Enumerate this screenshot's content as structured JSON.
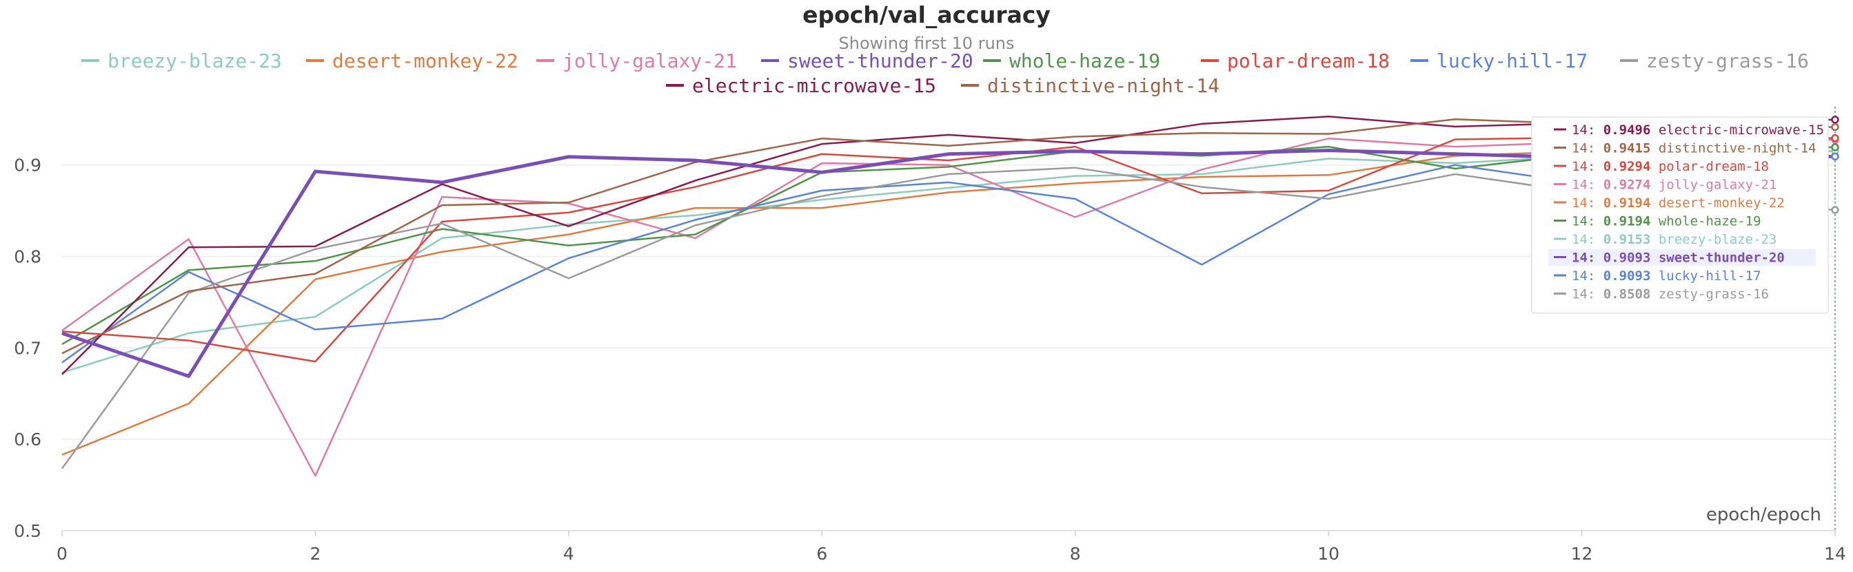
{
  "colors": {
    "breezy-blaze-23": "#8dcbbb",
    "desert-monkey-22": "#e07b3f",
    "jolly-galaxy-21": "#e07aa5",
    "sweet-thunder-20": "#7a4fb5",
    "whole-haze-19": "#4f944a",
    "polar-dream-18": "#d9473f",
    "lucky-hill-17": "#5a83d6",
    "zesty-grass-16": "#9b9b9b",
    "electric-microwave-15": "#8b1a4f",
    "distinctive-night-14": "#a0644a"
  },
  "chart_data": {
    "type": "line",
    "title": "epoch/val_accuracy",
    "subtitle": "Showing first 10 runs",
    "xlabel": "epoch/epoch",
    "ylabel": "",
    "xlim": [
      0,
      14
    ],
    "ylim": [
      0.5,
      0.96
    ],
    "xticks": [
      "0",
      "2",
      "4",
      "6",
      "8",
      "10",
      "12",
      "14"
    ],
    "yticks": [
      "0.5",
      "0.6",
      "0.7",
      "0.8",
      "0.9"
    ],
    "grid": true,
    "legend_position": "top",
    "legend_order": [
      "breezy-blaze-23",
      "desert-monkey-22",
      "jolly-galaxy-21",
      "sweet-thunder-20",
      "whole-haze-19",
      "polar-dream-18",
      "lucky-hill-17",
      "zesty-grass-16",
      "electric-microwave-15",
      "distinctive-night-14"
    ],
    "x": [
      0,
      1,
      2,
      3,
      4,
      5,
      6,
      7,
      8,
      9,
      10,
      11,
      12,
      13,
      14
    ],
    "series": [
      {
        "name": "breezy-blaze-23",
        "values": [
          0.673,
          0.716,
          0.734,
          0.82,
          0.835,
          0.845,
          0.862,
          0.875,
          0.888,
          0.89,
          0.907,
          0.902,
          0.91,
          0.912,
          0.9153
        ]
      },
      {
        "name": "desert-monkey-22",
        "values": [
          0.583,
          0.639,
          0.775,
          0.805,
          0.824,
          0.853,
          0.853,
          0.87,
          0.88,
          0.887,
          0.889,
          0.91,
          0.915,
          0.917,
          0.9194
        ]
      },
      {
        "name": "jolly-galaxy-21",
        "values": [
          0.719,
          0.819,
          0.56,
          0.865,
          0.858,
          0.82,
          0.902,
          0.9,
          0.843,
          0.895,
          0.929,
          0.92,
          0.925,
          0.927,
          0.9274
        ]
      },
      {
        "name": "sweet-thunder-20",
        "values": [
          0.716,
          0.669,
          0.893,
          0.881,
          0.909,
          0.905,
          0.892,
          0.912,
          0.915,
          0.912,
          0.916,
          0.912,
          0.908,
          0.909,
          0.9093
        ]
      },
      {
        "name": "whole-haze-19",
        "values": [
          0.704,
          0.785,
          0.795,
          0.83,
          0.812,
          0.824,
          0.892,
          0.898,
          0.915,
          0.91,
          0.92,
          0.896,
          0.912,
          0.917,
          0.9194
        ]
      },
      {
        "name": "polar-dream-18",
        "values": [
          0.718,
          0.708,
          0.685,
          0.838,
          0.848,
          0.876,
          0.912,
          0.905,
          0.92,
          0.869,
          0.872,
          0.928,
          0.93,
          0.929,
          0.9294
        ]
      },
      {
        "name": "lucky-hill-17",
        "values": [
          0.684,
          0.783,
          0.72,
          0.732,
          0.798,
          0.84,
          0.872,
          0.881,
          0.863,
          0.791,
          0.868,
          0.9,
          0.88,
          0.905,
          0.9093
        ]
      },
      {
        "name": "zesty-grass-16",
        "values": [
          0.568,
          0.76,
          0.808,
          0.836,
          0.776,
          0.834,
          0.866,
          0.89,
          0.897,
          0.876,
          0.863,
          0.89,
          0.87,
          0.86,
          0.8508
        ]
      },
      {
        "name": "electric-microwave-15",
        "values": [
          0.671,
          0.81,
          0.811,
          0.879,
          0.833,
          0.883,
          0.923,
          0.933,
          0.924,
          0.945,
          0.953,
          0.942,
          0.946,
          0.948,
          0.9496
        ]
      },
      {
        "name": "distinctive-night-14",
        "values": [
          0.694,
          0.762,
          0.781,
          0.856,
          0.859,
          0.903,
          0.929,
          0.921,
          0.931,
          0.935,
          0.934,
          0.95,
          0.945,
          0.943,
          0.9415
        ]
      }
    ],
    "highlighted_series": "sweet-thunder-20"
  },
  "tooltip": {
    "step": "14",
    "rows": [
      {
        "name": "electric-microwave-15",
        "value": "0.9496"
      },
      {
        "name": "distinctive-night-14",
        "value": "0.9415"
      },
      {
        "name": "polar-dream-18",
        "value": "0.9294"
      },
      {
        "name": "jolly-galaxy-21",
        "value": "0.9274"
      },
      {
        "name": "desert-monkey-22",
        "value": "0.9194"
      },
      {
        "name": "whole-haze-19",
        "value": "0.9194"
      },
      {
        "name": "breezy-blaze-23",
        "value": "0.9153"
      },
      {
        "name": "sweet-thunder-20",
        "value": "0.9093"
      },
      {
        "name": "lucky-hill-17",
        "value": "0.9093"
      },
      {
        "name": "zesty-grass-16",
        "value": "0.8508"
      }
    ]
  }
}
